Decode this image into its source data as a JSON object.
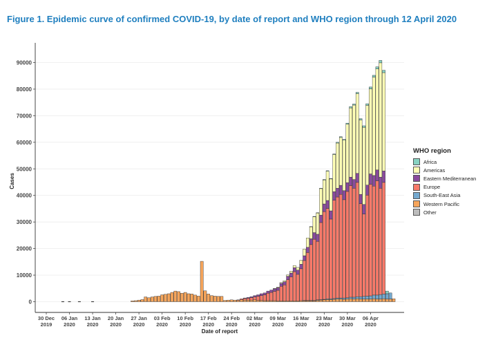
{
  "figure_title": "Figure 1. Epidemic curve of confirmed COVID-19, by date of report and WHO region through 12 April 2020",
  "chart_data": {
    "type": "bar",
    "stacked": true,
    "xlabel": "Date of report",
    "ylabel": "Cases",
    "ylim": [
      0,
      92000
    ],
    "yticks": [
      0,
      10000,
      20000,
      30000,
      40000,
      50000,
      60000,
      70000,
      80000,
      90000
    ],
    "x_tick_labels": [
      {
        "day": 0,
        "label": [
          "30 Dec",
          "2019"
        ]
      },
      {
        "day": 7,
        "label": [
          "06 Jan",
          "2020"
        ]
      },
      {
        "day": 14,
        "label": [
          "13 Jan",
          "2020"
        ]
      },
      {
        "day": 21,
        "label": [
          "20 Jan",
          "2020"
        ]
      },
      {
        "day": 28,
        "label": [
          "27 Jan",
          "2020"
        ]
      },
      {
        "day": 35,
        "label": [
          "03 Feb",
          "2020"
        ]
      },
      {
        "day": 42,
        "label": [
          "10 Feb",
          "2020"
        ]
      },
      {
        "day": 49,
        "label": [
          "17 Feb",
          "2020"
        ]
      },
      {
        "day": 56,
        "label": [
          "24 Feb",
          "2020"
        ]
      },
      {
        "day": 63,
        "label": [
          "02 Mar",
          "2020"
        ]
      },
      {
        "day": 70,
        "label": [
          "09 Mar",
          "2020"
        ]
      },
      {
        "day": 77,
        "label": [
          "16 Mar",
          "2020"
        ]
      },
      {
        "day": 84,
        "label": [
          "23 Mar",
          "2020"
        ]
      },
      {
        "day": 91,
        "label": [
          "30 Mar",
          "2020"
        ]
      },
      {
        "day": 98,
        "label": [
          "06 Apr",
          "2020"
        ]
      }
    ],
    "first_date": "30 Dec 2019",
    "last_date": "12 Apr 2020",
    "legend_title": "WHO region",
    "legend_position": "right",
    "grid": true,
    "series": [
      {
        "name": "Western Pacific",
        "color": "#f6a55b",
        "values": [
          0,
          0,
          0,
          0,
          0,
          0,
          0,
          0,
          0,
          0,
          0,
          0,
          0,
          0,
          0,
          0,
          0,
          0,
          0,
          0,
          0,
          0,
          0,
          0,
          0,
          0,
          300,
          400,
          600,
          800,
          1800,
          1500,
          1800,
          2000,
          2100,
          2600,
          2800,
          3000,
          3500,
          4000,
          3800,
          3200,
          3500,
          3000,
          2900,
          2500,
          2100,
          15200,
          4100,
          2900,
          2300,
          2100,
          2000,
          2000,
          500,
          600,
          700,
          600,
          500,
          700,
          600,
          600,
          600,
          700,
          500,
          500,
          400,
          400,
          400,
          400,
          300,
          300,
          300,
          300,
          300,
          300,
          300,
          400,
          400,
          400,
          400,
          400,
          500,
          600,
          700,
          800,
          800,
          900,
          1000,
          1000,
          900,
          1000,
          1100,
          1000,
          1100,
          1000,
          1000,
          1000,
          1000,
          1100,
          1000,
          1000,
          1100,
          1000,
          1000,
          1100
        ],
        "dashes": [
          5,
          7,
          10,
          14
        ]
      },
      {
        "name": "South-East Asia",
        "color": "#74a9cf",
        "values": [
          0,
          0,
          0,
          0,
          0,
          0,
          0,
          0,
          0,
          0,
          0,
          0,
          0,
          0,
          0,
          0,
          0,
          0,
          0,
          0,
          0,
          0,
          0,
          0,
          0,
          0,
          0,
          0,
          0,
          0,
          0,
          0,
          0,
          0,
          0,
          0,
          0,
          0,
          0,
          0,
          0,
          0,
          0,
          0,
          0,
          0,
          0,
          0,
          0,
          0,
          0,
          0,
          0,
          0,
          0,
          0,
          0,
          0,
          0,
          0,
          0,
          0,
          0,
          0,
          0,
          0,
          0,
          0,
          0,
          0,
          0,
          0,
          0,
          0,
          0,
          0,
          0,
          0,
          100,
          100,
          100,
          100,
          200,
          200,
          200,
          300,
          300,
          300,
          400,
          400,
          500,
          500,
          600,
          700,
          800,
          900,
          1000,
          1100,
          1200,
          1400,
          1500,
          1700,
          1800,
          2000,
          2300
        ]
      },
      {
        "name": "Europe",
        "color": "#f87a6a",
        "values": [
          0,
          0,
          0,
          0,
          0,
          0,
          0,
          0,
          0,
          0,
          0,
          0,
          0,
          0,
          0,
          0,
          0,
          0,
          0,
          0,
          0,
          0,
          0,
          0,
          0,
          0,
          0,
          0,
          0,
          0,
          0,
          0,
          0,
          0,
          0,
          0,
          0,
          0,
          0,
          0,
          0,
          0,
          0,
          0,
          0,
          0,
          0,
          0,
          0,
          0,
          0,
          0,
          0,
          0,
          0,
          0,
          0,
          0,
          200,
          400,
          600,
          700,
          900,
          1100,
          1500,
          1800,
          2200,
          2800,
          3100,
          3500,
          4000,
          5500,
          6000,
          8000,
          9000,
          11000,
          10000,
          12000,
          15000,
          18000,
          21000,
          23000,
          22000,
          29000,
          33000,
          34000,
          30000,
          37000,
          38000,
          39000,
          37000,
          40000,
          42000,
          41000,
          43000,
          35000,
          31000,
          38000,
          42000,
          41000,
          43000,
          40000,
          42000
        ]
      },
      {
        "name": "Eastern Mediterranean",
        "color": "#8a4a9e",
        "values": [
          0,
          0,
          0,
          0,
          0,
          0,
          0,
          0,
          0,
          0,
          0,
          0,
          0,
          0,
          0,
          0,
          0,
          0,
          0,
          0,
          0,
          0,
          0,
          0,
          0,
          0,
          0,
          0,
          0,
          0,
          0,
          0,
          0,
          0,
          0,
          0,
          0,
          0,
          0,
          0,
          0,
          0,
          0,
          0,
          0,
          0,
          0,
          0,
          0,
          0,
          0,
          0,
          0,
          0,
          0,
          0,
          0,
          0,
          0,
          0,
          200,
          300,
          400,
          500,
          600,
          700,
          700,
          800,
          900,
          1000,
          1000,
          1100,
          1200,
          1300,
          1500,
          1500,
          1600,
          1700,
          1800,
          2000,
          2200,
          2500,
          2700,
          2800,
          2900,
          3000,
          3100,
          3200,
          3300,
          3400,
          3400,
          3300,
          3200,
          3300,
          3400,
          3500,
          3600,
          3800,
          3900,
          4000,
          4100,
          4200,
          4300
        ]
      },
      {
        "name": "Americas",
        "color": "#ffffb6",
        "values": [
          0,
          0,
          0,
          0,
          0,
          0,
          0,
          0,
          0,
          0,
          0,
          0,
          0,
          0,
          0,
          0,
          0,
          0,
          0,
          0,
          0,
          0,
          0,
          0,
          0,
          0,
          0,
          0,
          0,
          0,
          0,
          0,
          0,
          0,
          0,
          0,
          0,
          0,
          0,
          0,
          0,
          0,
          0,
          0,
          0,
          0,
          0,
          0,
          0,
          0,
          0,
          0,
          0,
          0,
          0,
          0,
          0,
          0,
          0,
          0,
          0,
          0,
          0,
          0,
          0,
          0,
          0,
          0,
          0,
          100,
          200,
          300,
          400,
          500,
          700,
          800,
          1000,
          1500,
          2500,
          3500,
          4500,
          6000,
          8000,
          10000,
          9000,
          11000,
          12000,
          14000,
          17000,
          18000,
          19000,
          22000,
          26000,
          28000,
          30000,
          28000,
          29000,
          30000,
          32000,
          37000,
          38000,
          43000,
          37000
        ]
      },
      {
        "name": "Africa",
        "color": "#88d2c2",
        "values": [
          0,
          0,
          0,
          0,
          0,
          0,
          0,
          0,
          0,
          0,
          0,
          0,
          0,
          0,
          0,
          0,
          0,
          0,
          0,
          0,
          0,
          0,
          0,
          0,
          0,
          0,
          0,
          0,
          0,
          0,
          0,
          0,
          0,
          0,
          0,
          0,
          0,
          0,
          0,
          0,
          0,
          0,
          0,
          0,
          0,
          0,
          0,
          0,
          0,
          0,
          0,
          0,
          0,
          0,
          0,
          0,
          0,
          0,
          0,
          0,
          0,
          0,
          0,
          0,
          0,
          0,
          0,
          0,
          0,
          0,
          0,
          0,
          0,
          0,
          0,
          0,
          0,
          0,
          0,
          0,
          100,
          100,
          100,
          100,
          200,
          200,
          200,
          200,
          300,
          300,
          300,
          400,
          500,
          400,
          500,
          500,
          600,
          600,
          700,
          700,
          800,
          900,
          900,
          1000
        ]
      },
      {
        "name": "Other",
        "color": "#bdbdbd",
        "values": []
      }
    ]
  }
}
